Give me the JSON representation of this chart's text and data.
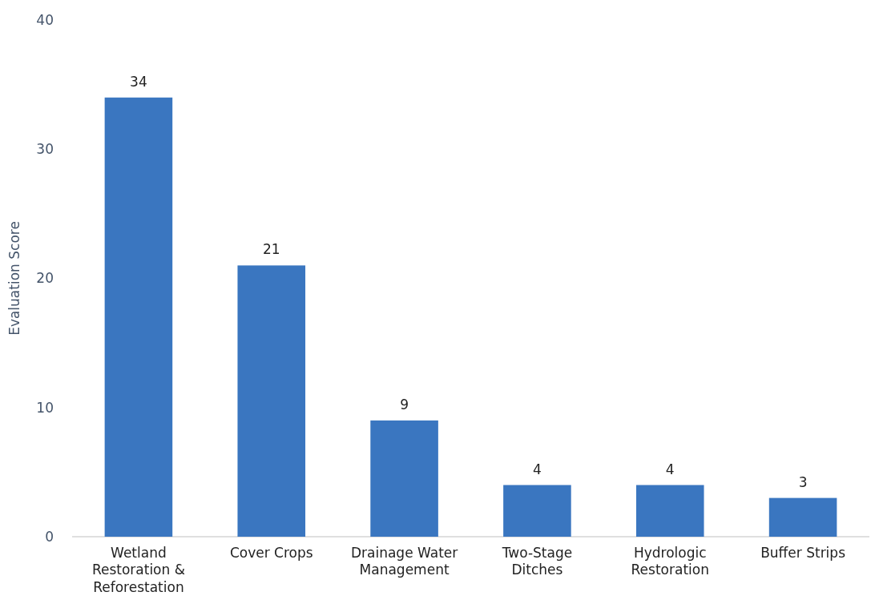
{
  "chart_data": {
    "type": "bar",
    "ylabel": "Evaluation Score",
    "categories": [
      "Wetland Restoration & Reforestation",
      "Cover Crops",
      "Drainage Water Management",
      "Two-Stage Ditches",
      "Hydrologic Restoration",
      "Buffer Strips"
    ],
    "values": [
      34,
      21,
      9,
      4,
      4,
      3
    ],
    "color": "#3a76c0",
    "ylim": [
      0,
      40
    ],
    "yticks": [
      0,
      10,
      20,
      30,
      40
    ],
    "grid": false,
    "data_labels": true
  }
}
